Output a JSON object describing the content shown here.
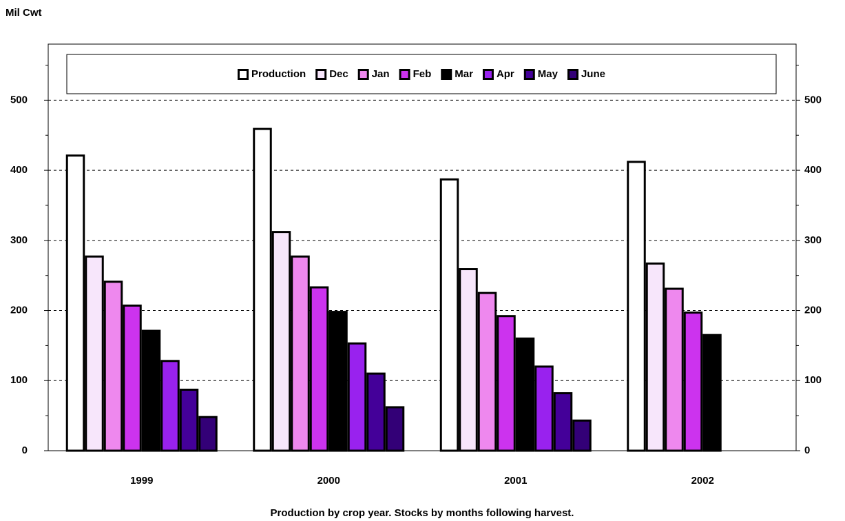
{
  "chart_data": {
    "type": "bar",
    "y_label": "Mil Cwt",
    "x_label": "Production by crop year.  Stocks by months following harvest.",
    "categories": [
      "1999",
      "2000",
      "2001",
      "2002"
    ],
    "series": [
      {
        "name": "Production",
        "color": "#ffffff",
        "values": [
          421,
          459,
          387,
          412
        ]
      },
      {
        "name": "Dec",
        "color": "#f7e6fb",
        "values": [
          277,
          312,
          259,
          267
        ]
      },
      {
        "name": "Jan",
        "color": "#ee88ee",
        "values": [
          241,
          277,
          225,
          231
        ]
      },
      {
        "name": "Feb",
        "color": "#cc33ee",
        "values": [
          207,
          233,
          192,
          197
        ]
      },
      {
        "name": "Mar",
        "color": "#000000",
        "values": [
          171,
          198,
          160,
          165
        ]
      },
      {
        "name": "Apr",
        "color": "#9922ee",
        "values": [
          128,
          153,
          120,
          null
        ]
      },
      {
        "name": "May",
        "color": "#440099",
        "values": [
          87,
          110,
          82,
          null
        ]
      },
      {
        "name": "June",
        "color": "#330077",
        "values": [
          48,
          62,
          43,
          null
        ]
      }
    ],
    "ylim": [
      0,
      580
    ],
    "yticks": [
      0,
      100,
      200,
      300,
      400,
      500
    ],
    "yminor_ticks": [
      50,
      150,
      250,
      350,
      450,
      550
    ],
    "grid": true,
    "legend": "top"
  }
}
